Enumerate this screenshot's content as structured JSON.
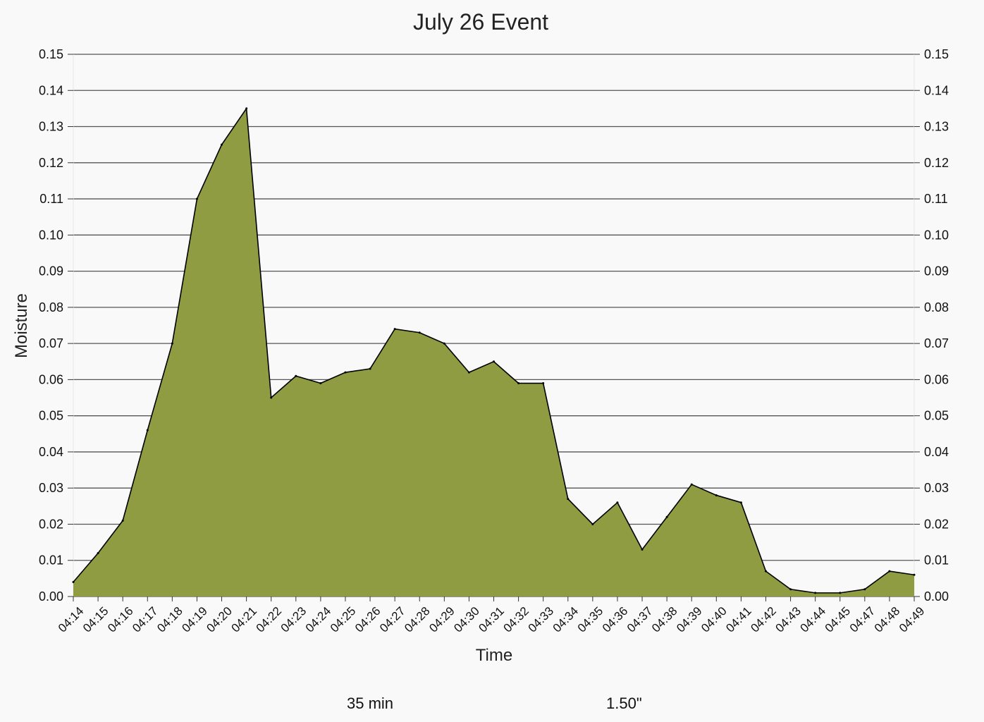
{
  "chart_data": {
    "type": "area",
    "title": "July 26 Event",
    "xlabel": "Time",
    "ylabel": "Moisture",
    "ylim": [
      0,
      0.15
    ],
    "yticks": [
      "0.00",
      "0.01",
      "0.02",
      "0.03",
      "0.04",
      "0.05",
      "0.06",
      "0.07",
      "0.08",
      "0.09",
      "0.10",
      "0.11",
      "0.12",
      "0.13",
      "0.14",
      "0.15"
    ],
    "grid": true,
    "right_axis": true,
    "fill_color": "#8f9c42",
    "line_color": "#000000",
    "categories": [
      "04:14",
      "04:15",
      "04:16",
      "04:17",
      "04:18",
      "04:19",
      "04:20",
      "04:21",
      "04:22",
      "04:23",
      "04:24",
      "04:25",
      "04:26",
      "04:27",
      "04:28",
      "04:29",
      "04:30",
      "04:31",
      "04:32",
      "04:33",
      "04:34",
      "04:35",
      "04:36",
      "04:37",
      "04:38",
      "04:39",
      "04:40",
      "04:41",
      "04:42",
      "04:43",
      "04:44",
      "04:45",
      "04:47",
      "04:48",
      "04:49"
    ],
    "values": [
      0.004,
      0.012,
      0.021,
      0.046,
      0.07,
      0.11,
      0.125,
      0.135,
      0.055,
      0.061,
      0.059,
      0.062,
      0.063,
      0.074,
      0.073,
      0.07,
      0.062,
      0.065,
      0.059,
      0.059,
      0.027,
      0.02,
      0.026,
      0.013,
      0.022,
      0.031,
      0.028,
      0.026,
      0.007,
      0.002,
      0.001,
      0.001,
      0.002,
      0.007,
      0.006
    ]
  },
  "footer": {
    "duration": "35 min",
    "rainfall": "1.50\""
  }
}
